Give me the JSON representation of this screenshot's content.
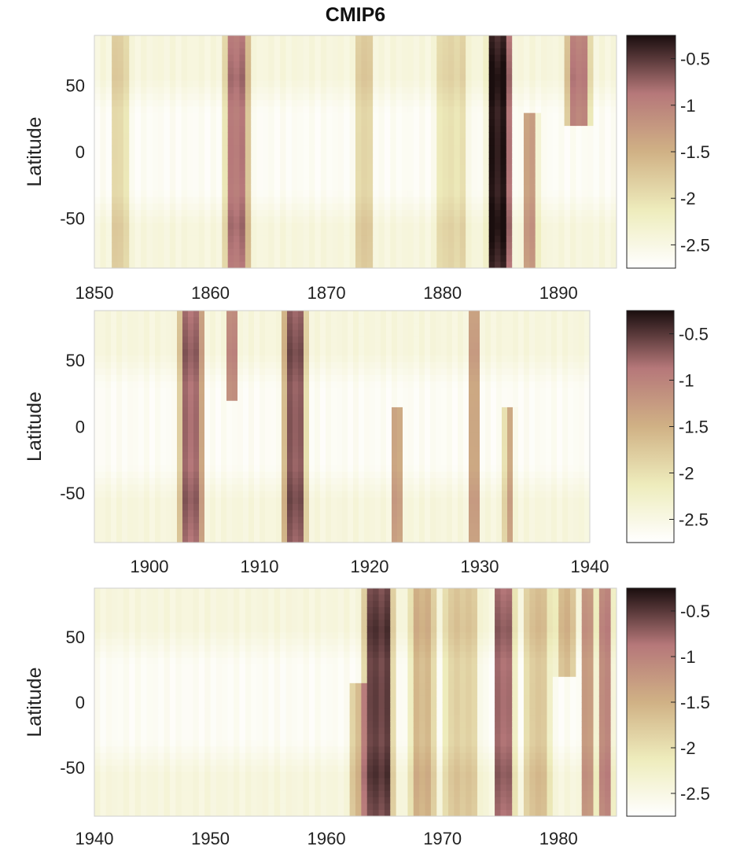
{
  "chart_data": {
    "type": "heatmap",
    "title": "CMIP6",
    "colormap": [
      "#ffffff",
      "#eeecbc",
      "#d0b185",
      "#b6787a",
      "#1a0e0e"
    ],
    "colorbar": {
      "range": [
        -2.75,
        -0.25
      ],
      "ticks": [
        -0.5,
        -1,
        -1.5,
        -2,
        -2.5
      ],
      "tick_labels": [
        "-0.5",
        "-1",
        "-1.5",
        "-2",
        "-2.5"
      ]
    },
    "ylabel": "Latitude",
    "ylim": [
      -87.5,
      87.5
    ],
    "yticks": [
      50,
      0,
      -50
    ],
    "ytick_labels": [
      "50",
      "0",
      "-50"
    ],
    "panels": [
      {
        "xlim": [
          1850,
          1895
        ],
        "xticks": [
          1850,
          1860,
          1870,
          1880,
          1890
        ],
        "xtick_labels": [
          "1850",
          "1860",
          "1870",
          "1880",
          "1890"
        ],
        "events": [
          {
            "year": 1852.2,
            "width": 1.0,
            "lat": [
              -87.5,
              87.5
            ],
            "strength": 0.72
          },
          {
            "year": 1862.3,
            "width": 1.5,
            "lat": [
              -87.5,
              87.5
            ],
            "strength": 1.75
          },
          {
            "year": 1873.2,
            "width": 1.1,
            "lat": [
              -87.5,
              87.5
            ],
            "strength": 0.75
          },
          {
            "year": 1880.8,
            "width": 2.0,
            "lat": [
              -87.5,
              87.5
            ],
            "strength": 0.62
          },
          {
            "year": 1884.9,
            "width": 1.5,
            "lat": [
              -87.5,
              87.5
            ],
            "strength": 2.35
          },
          {
            "year": 1887.6,
            "width": 0.9,
            "lat": [
              -87.5,
              30
            ],
            "strength": 1.35
          },
          {
            "year": 1891.7,
            "width": 1.5,
            "lat": [
              20,
              87.5
            ],
            "strength": 1.65
          }
        ]
      },
      {
        "xlim": [
          1895,
          1940
        ],
        "xticks": [
          1900,
          1910,
          1920,
          1930,
          1940
        ],
        "xtick_labels": [
          "1900",
          "1910",
          "1920",
          "1930",
          "1940"
        ],
        "events": [
          {
            "year": 1903.8,
            "width": 1.6,
            "lat": [
              -87.5,
              87.5
            ],
            "strength": 1.85
          },
          {
            "year": 1907.6,
            "width": 0.8,
            "lat": [
              20,
              87.5
            ],
            "strength": 1.55
          },
          {
            "year": 1913.2,
            "width": 1.5,
            "lat": [
              -87.5,
              87.5
            ],
            "strength": 1.95
          },
          {
            "year": 1922.6,
            "width": 0.8,
            "lat": [
              -87.5,
              15
            ],
            "strength": 1.25
          },
          {
            "year": 1929.4,
            "width": 0.7,
            "lat": [
              -87.5,
              87.5
            ],
            "strength": 1.25
          },
          {
            "year": 1932.7,
            "width": 0.7,
            "lat": [
              -87.5,
              15
            ],
            "strength": 1.25
          }
        ]
      },
      {
        "xlim": [
          1940,
          1985
        ],
        "xticks": [
          1940,
          1950,
          1960,
          1970,
          1980
        ],
        "xtick_labels": [
          "1940",
          "1950",
          "1960",
          "1970",
          "1980"
        ],
        "events": [
          {
            "year": 1962.8,
            "width": 1.0,
            "lat": [
              -87.5,
              15
            ],
            "strength": 1.0
          },
          {
            "year": 1964.5,
            "width": 1.8,
            "lat": [
              -87.5,
              87.5
            ],
            "strength": 2.1
          },
          {
            "year": 1968.3,
            "width": 1.6,
            "lat": [
              -87.5,
              87.5
            ],
            "strength": 1.05
          },
          {
            "year": 1971.6,
            "width": 2.2,
            "lat": [
              -87.5,
              87.5
            ],
            "strength": 0.8
          },
          {
            "year": 1975.3,
            "width": 1.3,
            "lat": [
              -87.5,
              87.5
            ],
            "strength": 1.85
          },
          {
            "year": 1978.2,
            "width": 1.6,
            "lat": [
              -87.5,
              87.5
            ],
            "strength": 0.9
          },
          {
            "year": 1980.6,
            "width": 1.2,
            "lat": [
              20,
              87.5
            ],
            "strength": 1.0
          },
          {
            "year": 1982.5,
            "width": 0.8,
            "lat": [
              -87.5,
              87.5
            ],
            "strength": 1.4
          },
          {
            "year": 1984.0,
            "width": 1.0,
            "lat": [
              -87.5,
              87.5
            ],
            "strength": 1.6
          }
        ]
      }
    ]
  }
}
